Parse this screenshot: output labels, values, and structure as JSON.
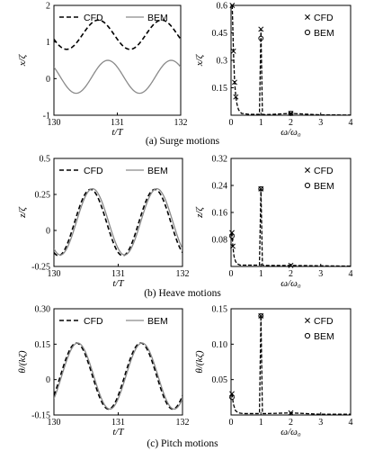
{
  "chart_data": [
    {
      "id": "surge-time",
      "type": "line",
      "xlabel": "t/T",
      "ylabel": "x/ζ",
      "xlim": [
        130,
        132
      ],
      "ylim": [
        -1,
        2
      ],
      "xticks": [
        130,
        131,
        132
      ],
      "yticks": [
        -1,
        0,
        1,
        2
      ],
      "legend": "top",
      "series": [
        {
          "name": "CFD",
          "style": "dashed",
          "kind": "sine",
          "mean": 1.2,
          "amp": 0.4,
          "period": 1.0,
          "phase_peak": 130.7
        },
        {
          "name": "BEM",
          "style": "solid",
          "kind": "sine",
          "mean": 0.05,
          "amp": 0.45,
          "period": 1.0,
          "phase_peak": 130.85
        }
      ]
    },
    {
      "id": "surge-spectrum",
      "type": "line",
      "xlabel": "ω/ω₀",
      "ylabel": "x/ζ",
      "xlim": [
        0,
        4
      ],
      "ylim": [
        0,
        0.6
      ],
      "xticks": [
        0,
        1,
        2,
        3,
        4
      ],
      "yticks": [
        0.15,
        0.3,
        0.45,
        0.6
      ],
      "legend": "top-right",
      "series": [
        {
          "name": "CFD",
          "marker": "x",
          "x": [
            0.04,
            0.08,
            0.12,
            0.16,
            0.2,
            0.25,
            0.35,
            0.6,
            0.95,
            1.0,
            1.05,
            1.15,
            2.0,
            3.0,
            4.0
          ],
          "y": [
            0.6,
            0.35,
            0.18,
            0.1,
            0.06,
            0.03,
            0.01,
            0.005,
            0.005,
            0.47,
            0.005,
            0.003,
            0.01,
            0.002,
            0.001
          ]
        },
        {
          "name": "BEM",
          "marker": "o",
          "x": [
            1.0,
            2.0
          ],
          "y": [
            0.42,
            0.01
          ]
        }
      ]
    },
    {
      "id": "heave-time",
      "type": "line",
      "xlabel": "t/T",
      "ylabel": "z/ζ",
      "xlim": [
        130,
        132
      ],
      "ylim": [
        -0.25,
        0.5
      ],
      "xticks": [
        130,
        131,
        132
      ],
      "yticks": [
        -0.25,
        0,
        0.25,
        0.5
      ],
      "legend": "top",
      "series": [
        {
          "name": "CFD",
          "style": "dashed",
          "kind": "sine",
          "mean": 0.055,
          "amp": 0.23,
          "period": 1.0,
          "phase_peak": 130.57
        },
        {
          "name": "BEM",
          "style": "solid",
          "kind": "sine",
          "mean": 0.06,
          "amp": 0.23,
          "period": 1.0,
          "phase_peak": 130.6
        }
      ]
    },
    {
      "id": "heave-spectrum",
      "type": "line",
      "xlabel": "ω/ω₀",
      "ylabel": "z/ζ",
      "xlim": [
        0,
        4
      ],
      "ylim": [
        0,
        0.32
      ],
      "xticks": [
        0,
        1,
        2,
        3,
        4
      ],
      "yticks": [
        0.08,
        0.16,
        0.24,
        0.32
      ],
      "legend": "top-right",
      "series": [
        {
          "name": "CFD",
          "marker": "x",
          "x": [
            0.03,
            0.06,
            0.1,
            0.15,
            0.2,
            0.3,
            0.95,
            1.0,
            1.05,
            1.2,
            2.0,
            3.0,
            4.0
          ],
          "y": [
            0.1,
            0.06,
            0.03,
            0.015,
            0.008,
            0.004,
            0.004,
            0.23,
            0.004,
            0.003,
            0.003,
            0.002,
            0.001
          ]
        },
        {
          "name": "BEM",
          "marker": "o",
          "x": [
            0.03,
            1.0
          ],
          "y": [
            0.09,
            0.23
          ]
        }
      ]
    },
    {
      "id": "pitch-time",
      "type": "line",
      "xlabel": "t/T",
      "ylabel": "θ/(kζ)",
      "xlim": [
        130,
        132
      ],
      "ylim": [
        -0.15,
        0.3
      ],
      "xticks": [
        130,
        131,
        132
      ],
      "yticks": [
        -0.15,
        0,
        0.15,
        0.3
      ],
      "ytick_labels": [
        "-0.15",
        "0",
        "0.15",
        "0.30"
      ],
      "legend": "top",
      "series": [
        {
          "name": "CFD",
          "style": "dashed",
          "kind": "sine",
          "mean": 0.015,
          "amp": 0.14,
          "period": 1.0,
          "phase_peak": 130.35
        },
        {
          "name": "BEM",
          "style": "solid",
          "kind": "sine",
          "mean": 0.015,
          "amp": 0.14,
          "period": 1.0,
          "phase_peak": 130.37
        }
      ]
    },
    {
      "id": "pitch-spectrum",
      "type": "line",
      "xlabel": "ω/ω₀",
      "ylabel": "θ/(kζ)",
      "xlim": [
        0,
        4
      ],
      "ylim": [
        0,
        0.15
      ],
      "xticks": [
        0,
        1,
        2,
        3,
        4
      ],
      "yticks": [
        0.05,
        0.1,
        0.15
      ],
      "ytick_labels": [
        "0.05",
        "0.10",
        "0.15"
      ],
      "legend": "top-right",
      "series": [
        {
          "name": "CFD",
          "marker": "x",
          "x": [
            0.03,
            0.08,
            0.15,
            0.25,
            0.4,
            0.95,
            1.0,
            1.05,
            1.2,
            2.0,
            3.0,
            4.0
          ],
          "y": [
            0.03,
            0.015,
            0.006,
            0.003,
            0.002,
            0.002,
            0.14,
            0.002,
            0.002,
            0.003,
            0.001,
            0.001
          ]
        },
        {
          "name": "BEM",
          "marker": "o",
          "x": [
            0.03,
            1.0
          ],
          "y": [
            0.025,
            0.14
          ]
        }
      ]
    }
  ],
  "captions": [
    "(a) Surge motions",
    "(b) Heave motions",
    "(c) Pitch motions"
  ]
}
